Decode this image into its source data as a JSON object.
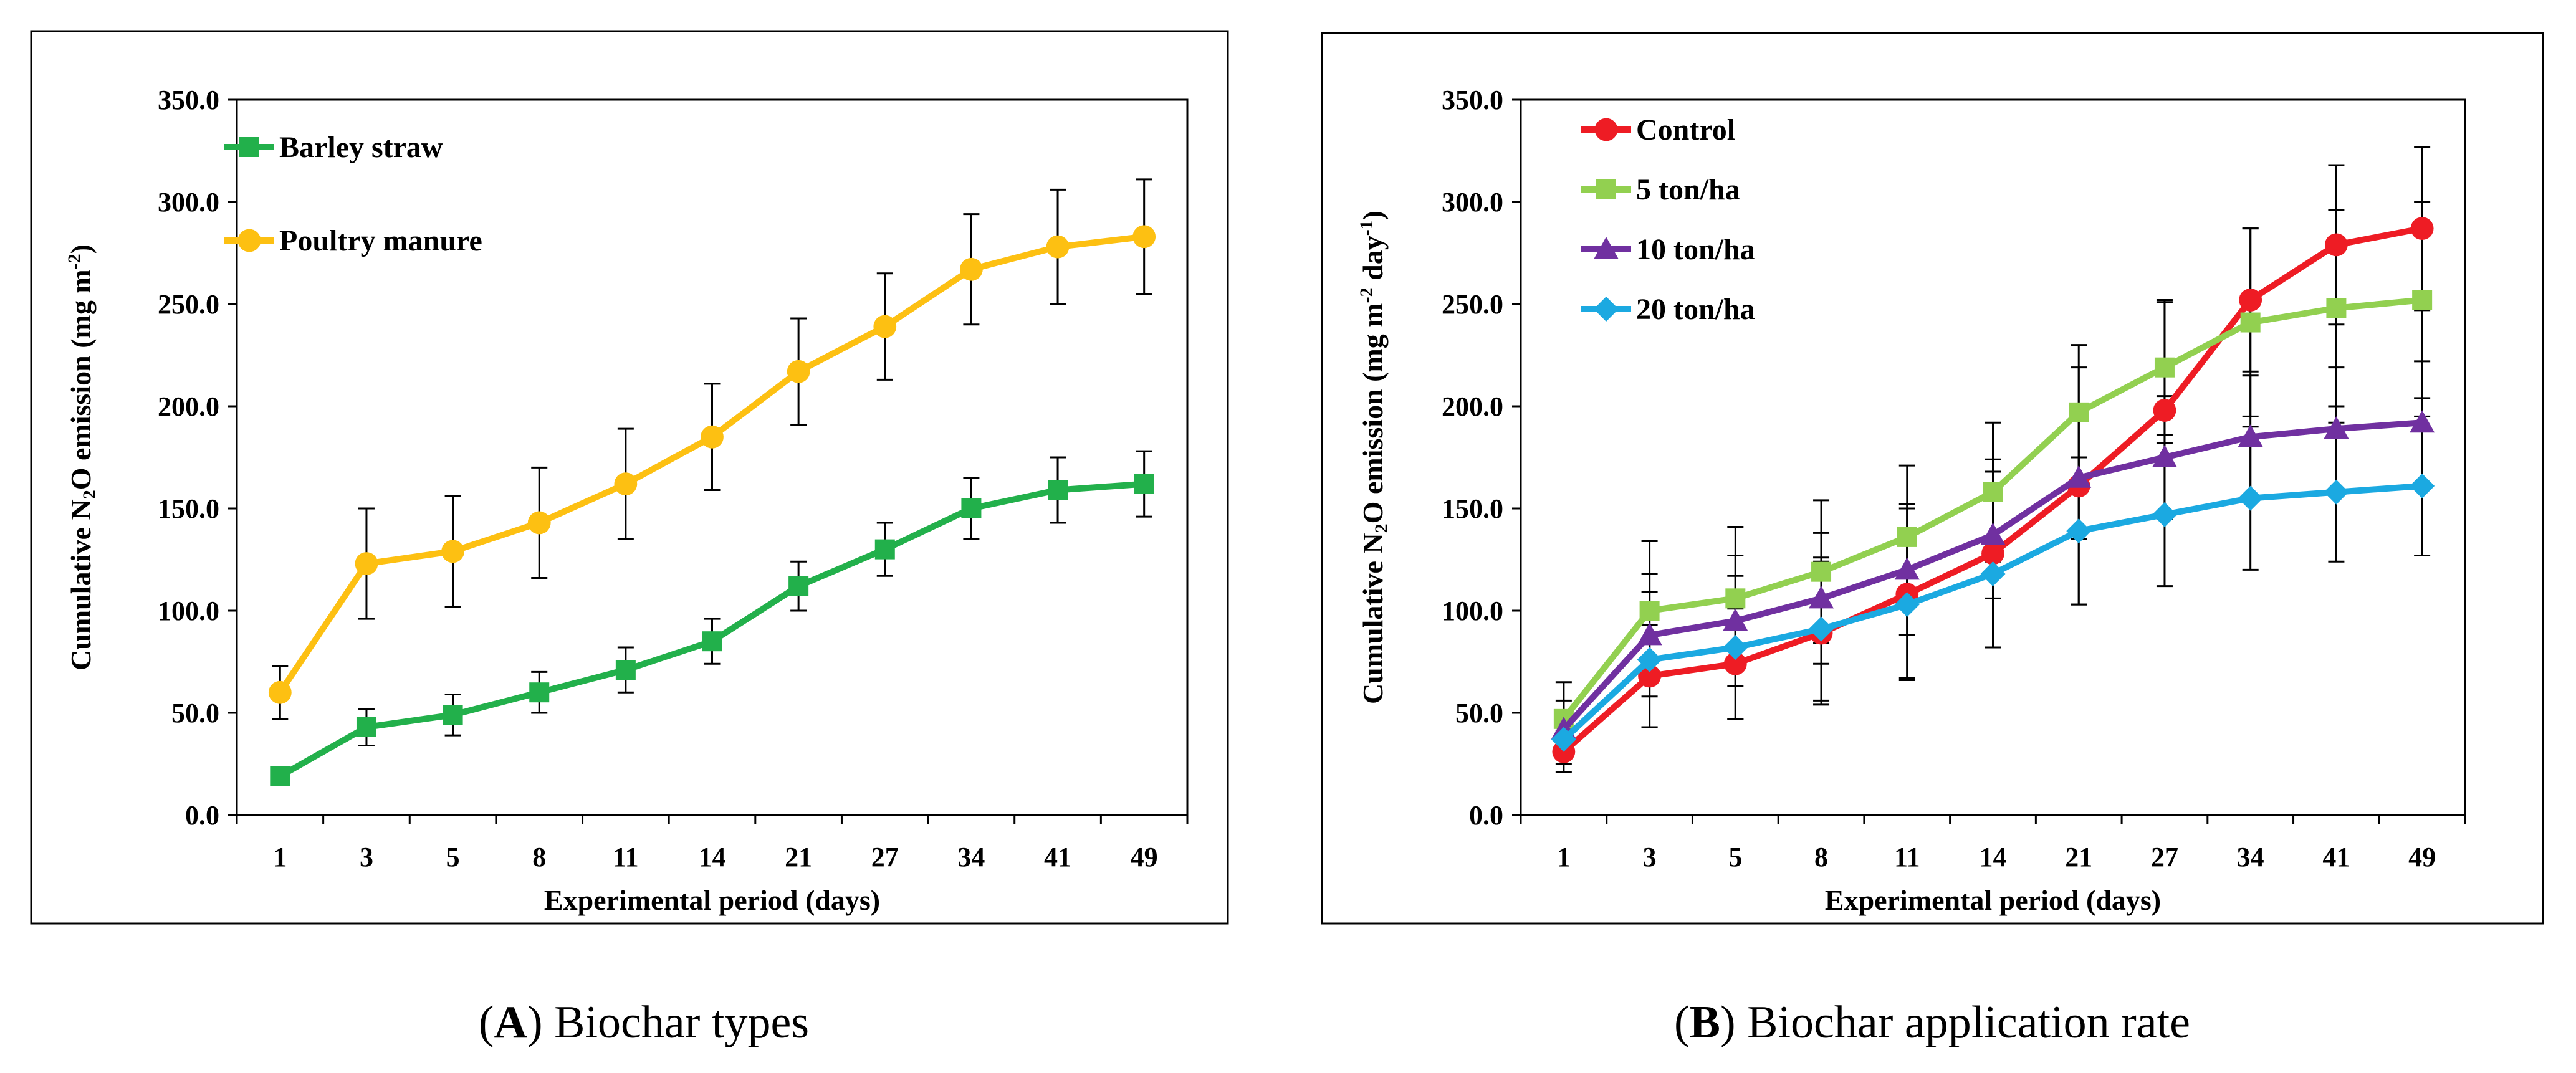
{
  "chart_data": [
    {
      "type": "line",
      "panel": "A",
      "caption_letter": "A",
      "caption_text": " Biochar types",
      "xlabel": "Experimental period (days)",
      "ylabel_main": "Cumulative N",
      "ylabel_sub": "2",
      "ylabel_rest": "O emission (mg m",
      "ylabel_sup": "-2",
      "ylabel_end": ")",
      "categories": [
        "1",
        "3",
        "5",
        "8",
        "11",
        "14",
        "21",
        "27",
        "34",
        "41",
        "49"
      ],
      "ylim": [
        0,
        350
      ],
      "yticks": [
        "0.0",
        "50.0",
        "100.0",
        "150.0",
        "200.0",
        "250.0",
        "300.0",
        "350.0"
      ],
      "legend_position": "top-left",
      "series": [
        {
          "name": "Barley straw",
          "color": "#22b04b",
          "marker": "square",
          "values": [
            19,
            43,
            49,
            60,
            71,
            85,
            112,
            130,
            150,
            159,
            162
          ],
          "errors": [
            3,
            9,
            10,
            10,
            11,
            11,
            12,
            13,
            15,
            16,
            16
          ]
        },
        {
          "name": "Poultry manure",
          "color": "#fdc012",
          "marker": "circle",
          "values": [
            60,
            123,
            129,
            143,
            162,
            185,
            217,
            239,
            267,
            278,
            283
          ],
          "errors": [
            13,
            27,
            27,
            27,
            27,
            26,
            26,
            26,
            27,
            28,
            28
          ]
        }
      ]
    },
    {
      "type": "line",
      "panel": "B",
      "caption_letter": "B",
      "caption_text": " Biochar application rate",
      "xlabel": "Experimental period (days)",
      "ylabel_main": "Cumulative N",
      "ylabel_sub": "2",
      "ylabel_rest": "O emission (mg m",
      "ylabel_sup": "-2",
      "ylabel_mid": " day",
      "ylabel_sup2": "-1",
      "ylabel_end": ")",
      "categories": [
        "1",
        "3",
        "5",
        "8",
        "11",
        "14",
        "21",
        "27",
        "34",
        "41",
        "49"
      ],
      "ylim": [
        0,
        350
      ],
      "yticks": [
        "0.0",
        "50.0",
        "100.0",
        "150.0",
        "200.0",
        "250.0",
        "300.0",
        "350.0"
      ],
      "legend_position": "top-left",
      "series": [
        {
          "name": "Control",
          "color": "#ee1c24",
          "marker": "circle",
          "values": [
            31,
            68,
            74,
            89,
            108,
            128,
            161,
            198,
            252,
            279,
            287
          ],
          "errors": [
            10,
            25,
            27,
            35,
            42,
            46,
            58,
            53,
            35,
            39,
            40
          ]
        },
        {
          "name": "5 ton/ha",
          "color": "#92d050",
          "marker": "square",
          "values": [
            47,
            100,
            106,
            119,
            136,
            158,
            197,
            219,
            241,
            248,
            252
          ],
          "errors": [
            18,
            34,
            35,
            35,
            35,
            34,
            33,
            33,
            46,
            48,
            48
          ]
        },
        {
          "name": "10 ton/ha",
          "color": "#7030a0",
          "marker": "triangle",
          "values": [
            42,
            88,
            95,
            106,
            120,
            137,
            165,
            175,
            185,
            189,
            192
          ],
          "errors": [
            14,
            30,
            32,
            32,
            32,
            31,
            30,
            30,
            30,
            30,
            30
          ]
        },
        {
          "name": "20 ton/ha",
          "color": "#1ba9e1",
          "marker": "diamond",
          "values": [
            37,
            76,
            82,
            91,
            103,
            118,
            139,
            147,
            155,
            158,
            161
          ],
          "errors": [
            12,
            33,
            35,
            35,
            36,
            36,
            36,
            35,
            35,
            34,
            34
          ]
        }
      ]
    }
  ]
}
